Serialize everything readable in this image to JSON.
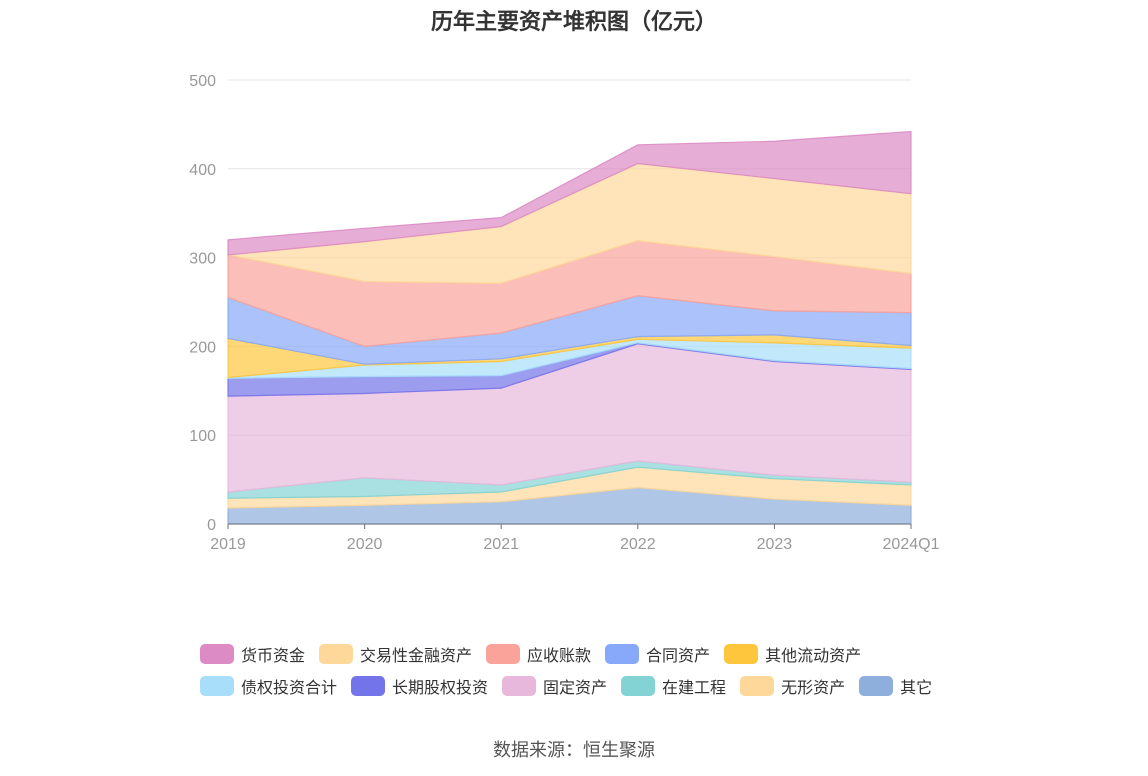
{
  "chart_data": {
    "type": "area",
    "stacked": true,
    "title": "历年主要资产堆积图（亿元）",
    "x": [
      "2019",
      "2020",
      "2021",
      "2022",
      "2023",
      "2024Q1"
    ],
    "ylim": [
      0,
      500
    ],
    "yticks": [
      0,
      100,
      200,
      300,
      400,
      500
    ],
    "grid": true,
    "legend_position": "bottom",
    "series": [
      {
        "name": "其它",
        "color": "#8eaedb",
        "values": [
          18,
          21,
          25,
          41,
          28,
          21
        ]
      },
      {
        "name": "无形资产",
        "color": "#fdd89a",
        "values": [
          11,
          10,
          11,
          23,
          23,
          23
        ]
      },
      {
        "name": "在建工程",
        "color": "#84d3d4",
        "values": [
          7,
          21,
          8,
          7,
          4,
          3
        ]
      },
      {
        "name": "固定资产",
        "color": "#e7b8db",
        "values": [
          108,
          95,
          109,
          132,
          128,
          127
        ]
      },
      {
        "name": "长期股权投资",
        "color": "#7474ea",
        "values": [
          20,
          19,
          14,
          1,
          1,
          1
        ]
      },
      {
        "name": "债权投资合计",
        "color": "#a8defa",
        "values": [
          1,
          13,
          16,
          4,
          20,
          23
        ]
      },
      {
        "name": "其他流动资产",
        "color": "#fdc63d",
        "values": [
          44,
          1,
          3,
          3,
          9,
          3
        ]
      },
      {
        "name": "合同资产",
        "color": "#88a8fa",
        "values": [
          46,
          20,
          29,
          46,
          27,
          37
        ]
      },
      {
        "name": "应收账款",
        "color": "#f9a39a",
        "values": [
          48,
          73,
          56,
          62,
          61,
          44
        ]
      },
      {
        "name": "交易性金融资产",
        "color": "#fdd89a",
        "values": [
          0,
          45,
          64,
          87,
          88,
          90
        ]
      },
      {
        "name": "货币资金",
        "color": "#dc8bc4",
        "values": [
          17,
          15,
          10,
          21,
          42,
          70
        ]
      }
    ]
  },
  "legend_rows": [
    [
      {
        "label": "货币资金",
        "color": "#dc8bc4"
      },
      {
        "label": "交易性金融资产",
        "color": "#fdd89a"
      },
      {
        "label": "应收账款",
        "color": "#f9a39a"
      },
      {
        "label": "合同资产",
        "color": "#88a8fa"
      },
      {
        "label": "其他流动资产",
        "color": "#fdc63d"
      }
    ],
    [
      {
        "label": "债权投资合计",
        "color": "#a8defa"
      },
      {
        "label": "长期股权投资",
        "color": "#7474ea"
      },
      {
        "label": "固定资产",
        "color": "#e7b8db"
      },
      {
        "label": "在建工程",
        "color": "#84d3d4"
      },
      {
        "label": "无形资产",
        "color": "#fdd89a"
      },
      {
        "label": "其它",
        "color": "#8eaedb"
      }
    ]
  ],
  "source": "数据来源：恒生聚源"
}
